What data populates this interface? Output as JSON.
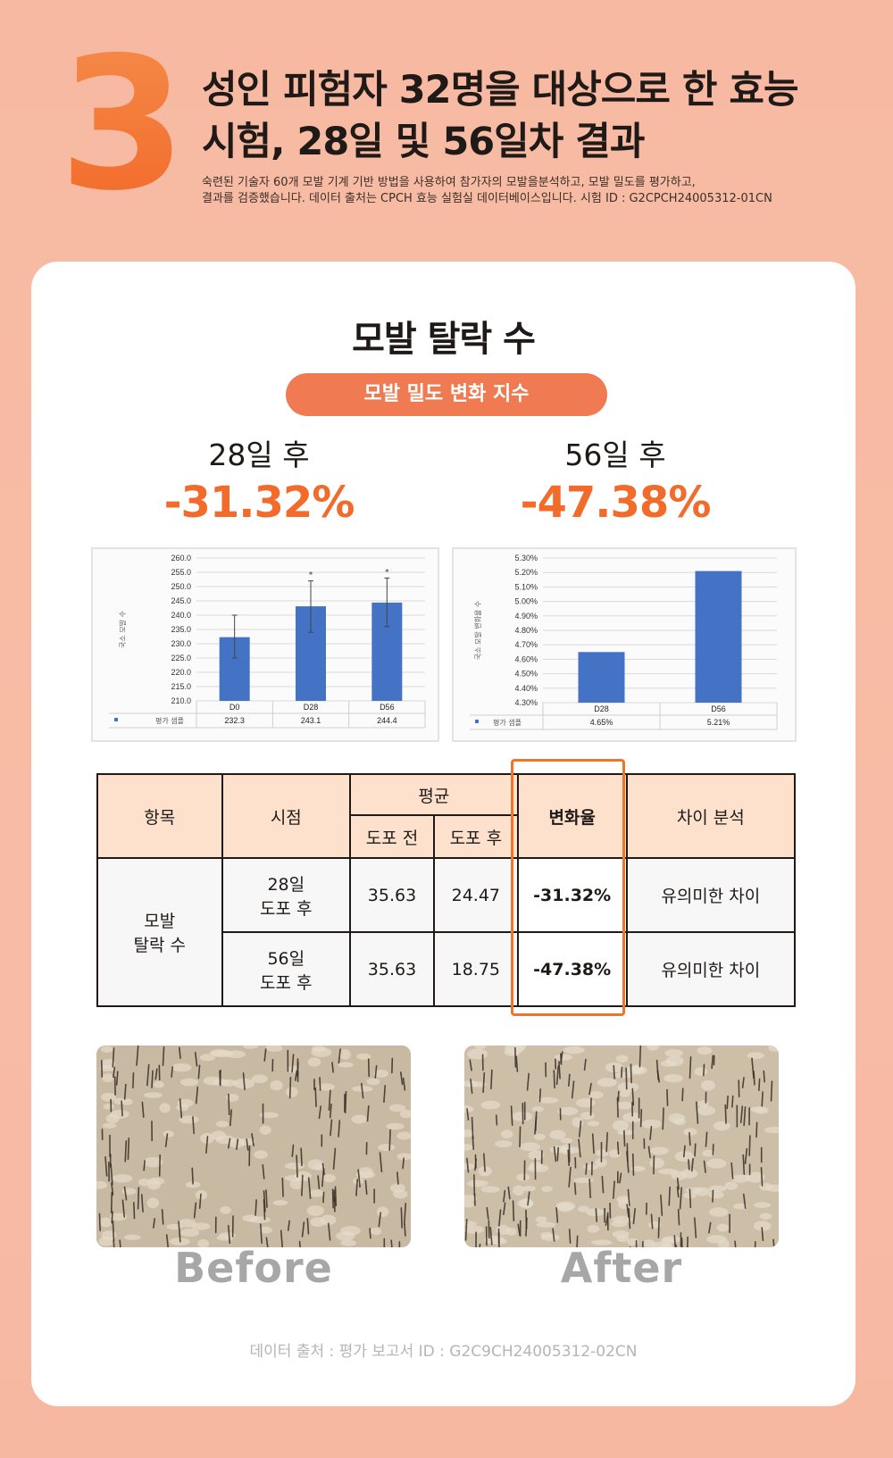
{
  "header": {
    "number": "3",
    "title_line1": "성인 피험자 32명을 대상으로 한 효능",
    "title_line2": "시험, 28일 및 56일차 결과",
    "desc_line1": "숙련된 기술자 60개 모발 기계 기반 방법을 사용하여 참가자의 모발을분석하고, 모발 밀도를 평가하고,",
    "desc_line2": "결과를 검증했습니다. 데이터 출처는 CPCH 효능 실험실 데이터베이스입니다. 시험 ID : G2CPCH24005312-01CN"
  },
  "card": {
    "title": "모발 탈락 수",
    "pill": "모발 밀도 변화 지수",
    "stat1": {
      "label": "28일 후",
      "value": "-31.32%"
    },
    "stat2": {
      "label": "56일 후",
      "value": "-47.38%"
    }
  },
  "chart_data": [
    {
      "type": "bar",
      "ylabel": "국소 모발 수",
      "categories": [
        "D0",
        "D28",
        "D56"
      ],
      "values": [
        232.3,
        243.1,
        244.4
      ],
      "value_labels": [
        "232.3",
        "243.1",
        "244.4"
      ],
      "error_high": [
        240,
        252,
        253
      ],
      "error_low": [
        225,
        234,
        236
      ],
      "significance_marks": [
        "",
        "*",
        "*"
      ],
      "legend": "평가 샘플",
      "ylim": [
        210,
        260
      ],
      "yticks": [
        "260.0",
        "255.0",
        "250.0",
        "245.0",
        "240.0",
        "235.0",
        "230.0",
        "225.0",
        "220.0",
        "215.0",
        "210.0"
      ],
      "color": "#4472c4"
    },
    {
      "type": "bar",
      "ylabel": "국소 모발 변화율 수",
      "categories": [
        "D28",
        "D56"
      ],
      "values": [
        4.65,
        5.21
      ],
      "value_labels": [
        "4.65%",
        "5.21%"
      ],
      "legend": "평가 샘플",
      "ylim": [
        4.3,
        5.3
      ],
      "yticks": [
        "5.30%",
        "5.20%",
        "5.10%",
        "5.00%",
        "4.90%",
        "4.80%",
        "4.70%",
        "4.60%",
        "4.50%",
        "4.40%",
        "4.30%"
      ],
      "color": "#4472c4"
    }
  ],
  "table": {
    "headers": {
      "item": "항목",
      "time": "시점",
      "avg": "평균",
      "before": "도포 전",
      "after": "도포 후",
      "rate": "변화율",
      "diff": "차이 분석"
    },
    "item_line1": "모발",
    "item_line2": "탈락 수",
    "rows": [
      {
        "time_line1": "28일",
        "time_line2": "도포 후",
        "before": "35.63",
        "after": "24.47",
        "rate": "-31.32%",
        "diff": "유의미한 차이"
      },
      {
        "time_line1": "56일",
        "time_line2": "도포 후",
        "before": "35.63",
        "after": "18.75",
        "rate": "-47.38%",
        "diff": "유의미한 차이"
      }
    ]
  },
  "photos": {
    "before": "Before",
    "after": "After"
  },
  "source": "데이터 출처 : 평가 보고서 ID : G2C9CH24005312-02CN"
}
